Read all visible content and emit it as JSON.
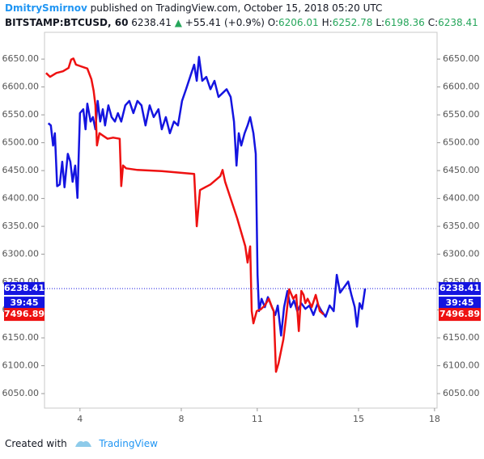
{
  "header": {
    "author": "DmitrySmirnov",
    "published": "published on TradingView.com, October 15, 2018 05:20 UTC",
    "symbol": "BITSTAMP:BTCUSD, 60",
    "price": "6238.41",
    "change": "+55.41 (+0.9%)",
    "ohlc": [
      {
        "label": "O:",
        "value": "6206.01"
      },
      {
        "label": "H:",
        "value": "6252.78"
      },
      {
        "label": "L:",
        "value": "6198.36"
      },
      {
        "label": "C:",
        "value": "6238.41"
      }
    ]
  },
  "footer": {
    "created": "Created with",
    "brand": "TradingView"
  },
  "chart_data": {
    "type": "line",
    "countdown": "39:45",
    "xlim": [
      2.6,
      18.1
    ],
    "xticks": [
      4,
      8,
      11,
      15,
      18
    ],
    "ylim": [
      6024,
      6698
    ],
    "yticks": [
      {
        "value": 6050,
        "label": "6050.00"
      },
      {
        "value": 6100,
        "label": "6100.00"
      },
      {
        "value": 6150,
        "label": "6150.00"
      },
      {
        "value": 6200,
        "label": "6200.00"
      },
      {
        "value": 6250,
        "label": "6250.00"
      },
      {
        "value": 6300,
        "label": "6300.00"
      },
      {
        "value": 6350,
        "label": "6350.00"
      },
      {
        "value": 6400,
        "label": "6400.00"
      },
      {
        "value": 6450,
        "label": "6450.00"
      },
      {
        "value": 6500,
        "label": "6500.00"
      },
      {
        "value": 6550,
        "label": "6550.00"
      },
      {
        "value": 6600,
        "label": "6600.00"
      },
      {
        "value": 6650,
        "label": "6650.00"
      }
    ],
    "y2lim": [
      7328.9,
      8002.9
    ],
    "series": [
      {
        "color": "#1414e0",
        "x": [
          2.75,
          2.85,
          2.94,
          3.01,
          3.1,
          3.2,
          3.3,
          3.39,
          3.52,
          3.62,
          3.71,
          3.81,
          3.9,
          4.0,
          4.13,
          4.22,
          4.29,
          4.42,
          4.51,
          4.61,
          4.7,
          4.8,
          4.9,
          4.99,
          5.12,
          5.25,
          5.38,
          5.5,
          5.63,
          5.79,
          5.95,
          6.11,
          6.27,
          6.43,
          6.59,
          6.75,
          6.91,
          7.1,
          7.23,
          7.39,
          7.55,
          7.71,
          7.87,
          8.03,
          8.19,
          8.35,
          8.51,
          8.61,
          8.7,
          8.83,
          8.99,
          9.15,
          9.31,
          9.47,
          9.63,
          9.79,
          9.95,
          10.08,
          10.18,
          10.27,
          10.37,
          10.5,
          10.62,
          10.72,
          10.85,
          10.94,
          11.01,
          11.07,
          11.17,
          11.3,
          11.42,
          11.58,
          11.71,
          11.81,
          11.94,
          12.06,
          12.19,
          12.32,
          12.45,
          12.58,
          12.74,
          12.9,
          13.06,
          13.22,
          13.38,
          13.54,
          13.7,
          13.86,
          14.02,
          14.14,
          14.27,
          14.43,
          14.59,
          14.72,
          14.85,
          14.94,
          15.04,
          15.14,
          15.26
        ],
        "values": [
          6535,
          6531,
          6495,
          6517,
          6422,
          6425,
          6466,
          6420,
          6480,
          6466,
          6430,
          6459,
          6401,
          6553,
          6560,
          6524,
          6570,
          6538,
          6546,
          6524,
          6575,
          6538,
          6560,
          6531,
          6567,
          6546,
          6538,
          6553,
          6538,
          6567,
          6575,
          6553,
          6575,
          6567,
          6531,
          6567,
          6546,
          6560,
          6524,
          6546,
          6517,
          6538,
          6531,
          6575,
          6596,
          6618,
          6640,
          6611,
          6654,
          6611,
          6618,
          6596,
          6611,
          6582,
          6589,
          6596,
          6582,
          6538,
          6459,
          6517,
          6495,
          6517,
          6531,
          6546,
          6517,
          6480,
          6263,
          6198,
          6220,
          6205,
          6223,
          6205,
          6191,
          6208,
          6154,
          6205,
          6234,
          6205,
          6217,
          6198,
          6212,
          6202,
          6208,
          6191,
          6211,
          6198,
          6188,
          6208,
          6198,
          6263,
          6231,
          6241,
          6251,
          6227,
          6205,
          6170,
          6212,
          6202,
          6238.41
        ]
      },
      {
        "color": "#ee1111",
        "axis": "y2",
        "x": [
          2.66,
          2.82,
          3.07,
          3.33,
          3.55,
          3.65,
          3.74,
          3.84,
          4.03,
          4.29,
          4.45,
          4.54,
          4.61,
          4.67,
          4.77,
          4.93,
          5.09,
          5.31,
          5.57,
          5.63,
          5.7,
          5.82,
          6.27,
          7.23,
          8.51,
          8.61,
          8.74,
          9.15,
          9.54,
          9.63,
          9.73,
          9.89,
          10.21,
          10.53,
          10.62,
          10.72,
          10.78,
          10.85,
          10.98,
          11.14,
          11.3,
          11.46,
          11.58,
          11.65,
          11.74,
          11.84,
          12.03,
          12.13,
          12.26,
          12.42,
          12.54,
          12.64,
          12.74,
          12.83,
          12.9,
          12.99,
          13.15,
          13.31,
          13.47,
          13.62
        ],
        "values": [
          7930,
          7923,
          7930,
          7933,
          7939,
          7954,
          7956,
          7945,
          7942,
          7938,
          7919,
          7898,
          7872,
          7800,
          7822,
          7817,
          7812,
          7814,
          7812,
          7727,
          7764,
          7759,
          7756,
          7754,
          7749,
          7655,
          7720,
          7730,
          7745,
          7756,
          7735,
          7713,
          7669,
          7619,
          7590,
          7619,
          7503,
          7481,
          7503,
          7506,
          7513,
          7525,
          7510,
          7503,
          7394,
          7409,
          7452,
          7488,
          7542,
          7525,
          7532,
          7467,
          7539,
          7532,
          7517,
          7525,
          7510,
          7532,
          7503,
          7496.89
        ]
      }
    ]
  }
}
